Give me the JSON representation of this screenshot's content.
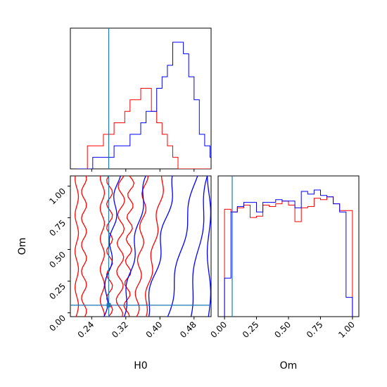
{
  "chart_data": {
    "type": "corner",
    "parameters": [
      "H0",
      "Om"
    ],
    "truth": {
      "H0": 0.28,
      "Om": 0.06
    },
    "truth_color": "#1f77b4",
    "series": [
      {
        "color": "#ff0000"
      },
      {
        "color": "#0000ff"
      }
    ],
    "panels": {
      "hist_H0": {
        "xlim": [
          0.19,
          0.52
        ],
        "bins_start": 0.205,
        "bin_width": 0.0125,
        "counts": {
          "#ff0000": [
            0,
            0,
            2,
            2,
            2,
            3,
            3,
            4,
            4,
            5,
            6,
            6,
            7,
            7,
            5,
            4,
            3,
            2,
            1,
            0,
            0,
            0,
            0,
            0,
            0,
            0
          ],
          "#0000ff": [
            0,
            0,
            0,
            1,
            1,
            1,
            1,
            2,
            2,
            2,
            3,
            3,
            4,
            5,
            5,
            7,
            8,
            9,
            11,
            11,
            10,
            8,
            6,
            3,
            2,
            1
          ]
        }
      },
      "hist_Om": {
        "xlim": [
          -0.05,
          1.05
        ],
        "bins_start": 0.0,
        "bin_width": 0.05,
        "counts": {
          "#ff0000": [
            7.8,
            7.6,
            7.9,
            8.1,
            7.2,
            7.3,
            8.1,
            8.0,
            8.2,
            8.4,
            8.1,
            6.9,
            7.9,
            8.0,
            8.6,
            8.5,
            8.7,
            8.2,
            7.7,
            7.7
          ],
          "#0000ff": [
            2.8,
            7.6,
            8.0,
            8.3,
            8.3,
            7.6,
            8.3,
            8.3,
            8.5,
            8.4,
            8.4,
            7.9,
            9.1,
            8.9,
            9.2,
            8.8,
            8.7,
            8.2,
            7.6,
            1.4
          ]
        }
      },
      "scatter_H0_Om": {
        "xlim": [
          0.19,
          0.52
        ],
        "ylim": [
          -0.03,
          1.08
        ],
        "xticks": [
          "0.24",
          "0.32",
          "0.40",
          "0.48"
        ],
        "yticks": [
          "0.00",
          "0.25",
          "0.50",
          "0.75",
          "1.00"
        ]
      }
    },
    "om_xticks": [
      "0.00",
      "0.25",
      "0.50",
      "0.75",
      "1.00"
    ],
    "xlabel_left": "H0",
    "xlabel_right": "Om",
    "ylabel": "Om"
  }
}
